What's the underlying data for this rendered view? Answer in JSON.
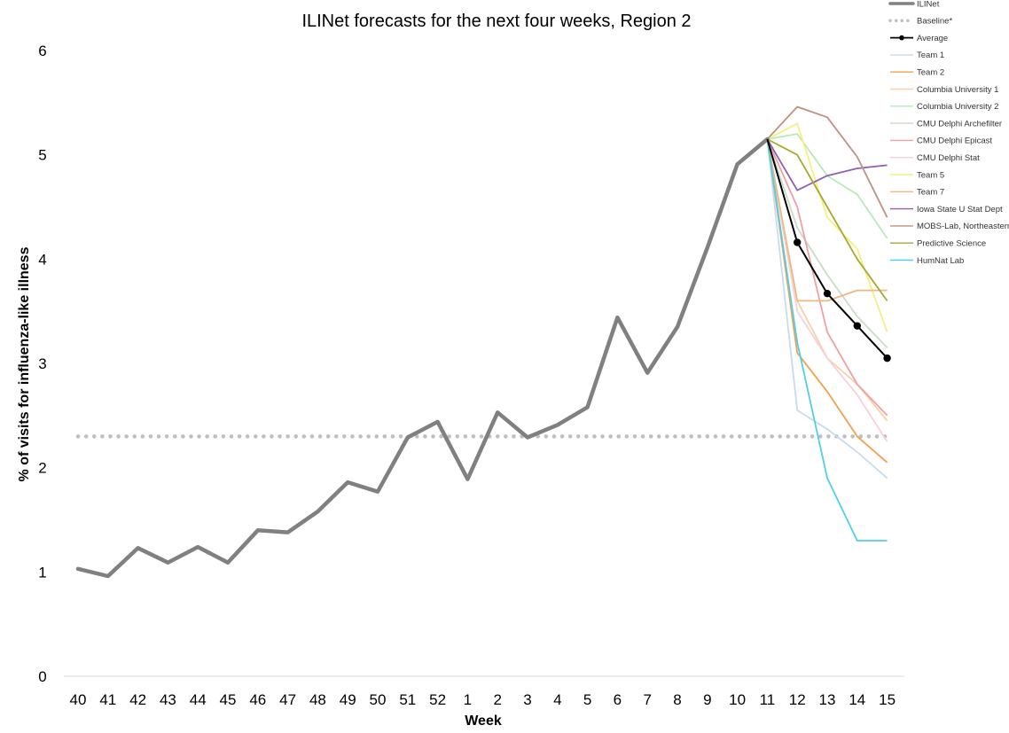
{
  "chart_data": {
    "type": "line",
    "title": "ILINet forecasts for the next four weeks, Region 2",
    "xlabel": "Week",
    "ylabel": "% of visits for influenza-like illness",
    "categories": [
      "40",
      "41",
      "42",
      "43",
      "44",
      "45",
      "46",
      "47",
      "48",
      "49",
      "50",
      "51",
      "52",
      "1",
      "2",
      "3",
      "4",
      "5",
      "6",
      "7",
      "8",
      "9",
      "10",
      "11",
      "12",
      "13",
      "14",
      "15"
    ],
    "ylim": [
      0,
      6
    ],
    "yticks": [
      "0",
      "1",
      "2",
      "3",
      "4",
      "5",
      "6"
    ],
    "legend_position": "top-right",
    "baseline_value": 2.3,
    "series": [
      {
        "name": "ILINet",
        "color": "#808080",
        "style": "solid-thick",
        "values": [
          1.03,
          0.96,
          1.23,
          1.09,
          1.24,
          1.09,
          1.4,
          1.38,
          1.58,
          1.86,
          1.77,
          2.29,
          2.44,
          1.89,
          2.53,
          2.29,
          2.41,
          2.58,
          3.44,
          2.91,
          3.35,
          4.11,
          4.91,
          5.15,
          null,
          null,
          null,
          null
        ]
      },
      {
        "name": "Baseline*",
        "color": "#bfbfbf",
        "style": "dotted",
        "values": [
          2.3,
          2.3,
          2.3,
          2.3,
          2.3,
          2.3,
          2.3,
          2.3,
          2.3,
          2.3,
          2.3,
          2.3,
          2.3,
          2.3,
          2.3,
          2.3,
          2.3,
          2.3,
          2.3,
          2.3,
          2.3,
          2.3,
          2.3,
          2.3,
          2.3,
          2.3,
          2.3,
          2.3
        ]
      },
      {
        "name": "Average",
        "color": "#000000",
        "style": "solid-markers",
        "values": [
          null,
          null,
          null,
          null,
          null,
          null,
          null,
          null,
          null,
          null,
          null,
          null,
          null,
          null,
          null,
          null,
          null,
          null,
          null,
          null,
          null,
          null,
          null,
          5.15,
          4.16,
          3.67,
          3.36,
          3.05
        ]
      },
      {
        "name": "Team 1",
        "color": "#c5dcef",
        "style": "solid",
        "values": [
          null,
          null,
          null,
          null,
          null,
          null,
          null,
          null,
          null,
          null,
          null,
          null,
          null,
          null,
          null,
          null,
          null,
          null,
          null,
          null,
          null,
          null,
          null,
          5.15,
          2.55,
          2.37,
          2.15,
          1.9
        ]
      },
      {
        "name": "Team 2",
        "color": "#f0a050",
        "style": "solid",
        "values": [
          null,
          null,
          null,
          null,
          null,
          null,
          null,
          null,
          null,
          null,
          null,
          null,
          null,
          null,
          null,
          null,
          null,
          null,
          null,
          null,
          null,
          null,
          null,
          5.15,
          3.1,
          2.73,
          2.3,
          2.05
        ]
      },
      {
        "name": "Columbia University 1",
        "color": "#f8d0a8",
        "style": "solid",
        "values": [
          null,
          null,
          null,
          null,
          null,
          null,
          null,
          null,
          null,
          null,
          null,
          null,
          null,
          null,
          null,
          null,
          null,
          null,
          null,
          null,
          null,
          null,
          null,
          5.15,
          3.6,
          3.05,
          2.8,
          2.45
        ]
      },
      {
        "name": "Columbia University 2",
        "color": "#b8eab8",
        "style": "solid",
        "values": [
          null,
          null,
          null,
          null,
          null,
          null,
          null,
          null,
          null,
          null,
          null,
          null,
          null,
          null,
          null,
          null,
          null,
          null,
          null,
          null,
          null,
          null,
          null,
          5.15,
          5.2,
          4.8,
          4.62,
          4.2
        ]
      },
      {
        "name": "CMU Delphi Archefilter",
        "color": "#c8dcc8",
        "style": "solid",
        "values": [
          null,
          null,
          null,
          null,
          null,
          null,
          null,
          null,
          null,
          null,
          null,
          null,
          null,
          null,
          null,
          null,
          null,
          null,
          null,
          null,
          null,
          null,
          null,
          5.15,
          4.3,
          3.85,
          3.45,
          3.15
        ]
      },
      {
        "name": "CMU Delphi Epicast",
        "color": "#f0a0a0",
        "style": "solid",
        "values": [
          null,
          null,
          null,
          null,
          null,
          null,
          null,
          null,
          null,
          null,
          null,
          null,
          null,
          null,
          null,
          null,
          null,
          null,
          null,
          null,
          null,
          null,
          null,
          5.15,
          4.5,
          3.3,
          2.8,
          2.5
        ]
      },
      {
        "name": "CMU Delphi Stat",
        "color": "#f8d0d8",
        "style": "solid",
        "values": [
          null,
          null,
          null,
          null,
          null,
          null,
          null,
          null,
          null,
          null,
          null,
          null,
          null,
          null,
          null,
          null,
          null,
          null,
          null,
          null,
          null,
          null,
          null,
          5.15,
          3.5,
          3.05,
          2.7,
          2.25
        ]
      },
      {
        "name": "Team 5",
        "color": "#f4f080",
        "style": "solid",
        "values": [
          null,
          null,
          null,
          null,
          null,
          null,
          null,
          null,
          null,
          null,
          null,
          null,
          null,
          null,
          null,
          null,
          null,
          null,
          null,
          null,
          null,
          null,
          null,
          5.15,
          5.3,
          4.4,
          4.1,
          3.3
        ]
      },
      {
        "name": "Team 7",
        "color": "#f0b880",
        "style": "solid",
        "values": [
          null,
          null,
          null,
          null,
          null,
          null,
          null,
          null,
          null,
          null,
          null,
          null,
          null,
          null,
          null,
          null,
          null,
          null,
          null,
          null,
          null,
          null,
          null,
          5.15,
          3.6,
          3.6,
          3.7,
          3.7
        ]
      },
      {
        "name": "Iowa State U Stat Dept",
        "color": "#9060b0",
        "style": "solid",
        "values": [
          null,
          null,
          null,
          null,
          null,
          null,
          null,
          null,
          null,
          null,
          null,
          null,
          null,
          null,
          null,
          null,
          null,
          null,
          null,
          null,
          null,
          null,
          null,
          5.15,
          4.66,
          4.8,
          4.87,
          4.9
        ]
      },
      {
        "name": "MOBS-Lab, Northeastern",
        "color": "#c09080",
        "style": "solid",
        "values": [
          null,
          null,
          null,
          null,
          null,
          null,
          null,
          null,
          null,
          null,
          null,
          null,
          null,
          null,
          null,
          null,
          null,
          null,
          null,
          null,
          null,
          null,
          null,
          5.15,
          5.46,
          5.36,
          4.98,
          4.4
        ]
      },
      {
        "name": "Predictive Science",
        "color": "#a8a830",
        "style": "solid",
        "values": [
          null,
          null,
          null,
          null,
          null,
          null,
          null,
          null,
          null,
          null,
          null,
          null,
          null,
          null,
          null,
          null,
          null,
          null,
          null,
          null,
          null,
          null,
          null,
          5.15,
          5.0,
          4.5,
          4.0,
          3.6
        ]
      },
      {
        "name": "HumNat Lab",
        "color": "#50d0e8",
        "style": "solid",
        "values": [
          null,
          null,
          null,
          null,
          null,
          null,
          null,
          null,
          null,
          null,
          null,
          null,
          null,
          null,
          null,
          null,
          null,
          null,
          null,
          null,
          null,
          null,
          null,
          5.15,
          3.2,
          1.9,
          1.3,
          1.3
        ]
      }
    ]
  }
}
